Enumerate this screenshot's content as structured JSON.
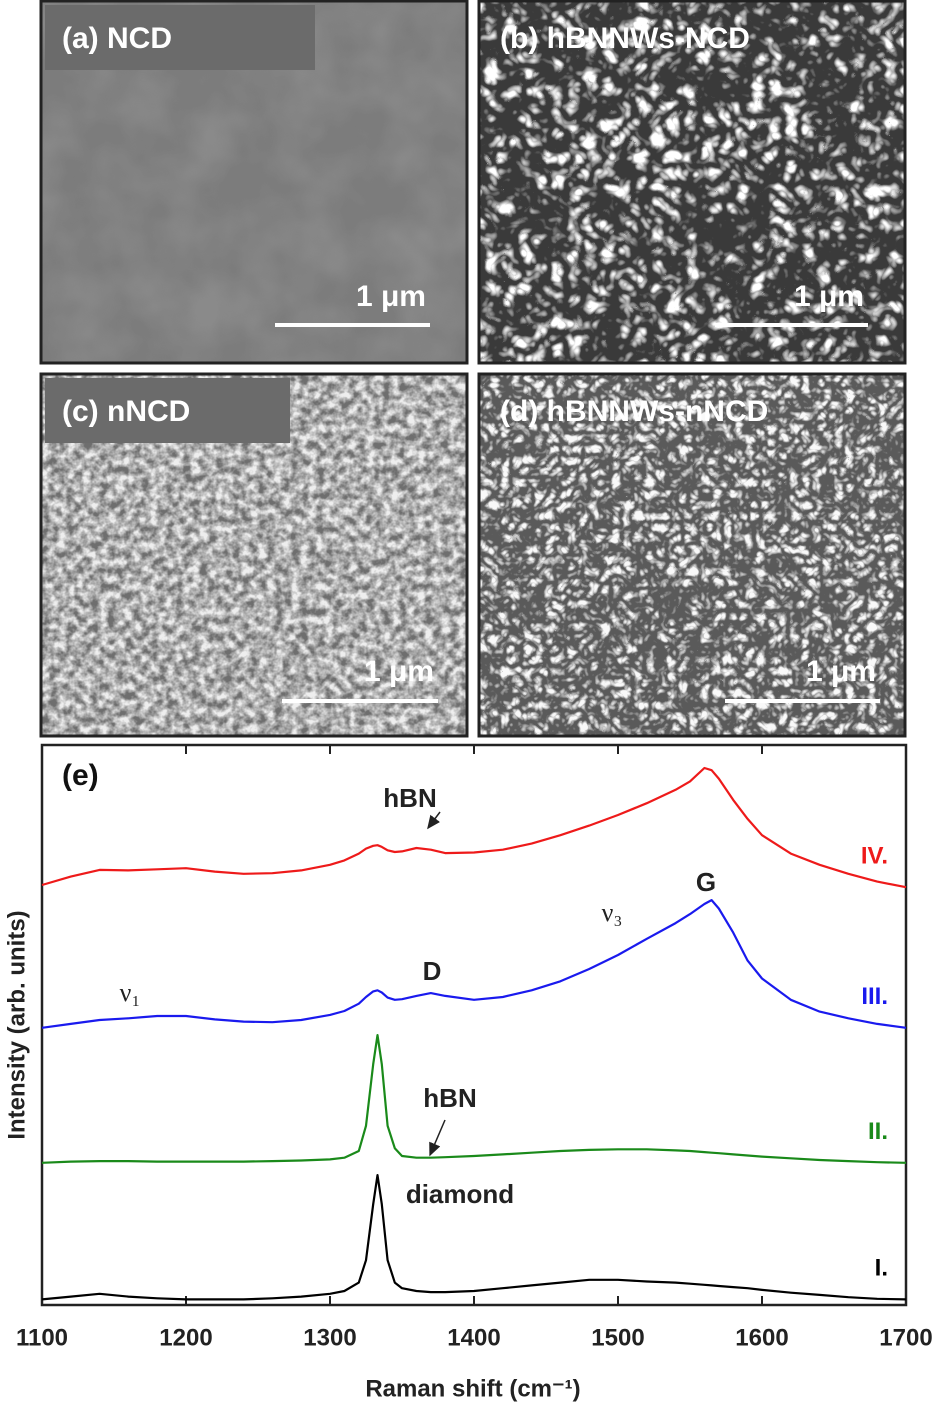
{
  "panels": [
    {
      "label": "(a) NCD",
      "scale_bar": "1 μm"
    },
    {
      "label": "(b) hBNNWs-NCD",
      "scale_bar": "1 μm"
    },
    {
      "label": "(c) nNCD",
      "scale_bar": "1 μm"
    },
    {
      "label": "(d) hBNNWs-nNCD",
      "scale_bar": "1 μm"
    }
  ],
  "chart_data": {
    "type": "line",
    "panel_label": "(e)",
    "xlabel": "Raman shift (cm⁻¹)",
    "ylabel": "Intensity (arb. units)",
    "xlim": [
      1100,
      1700
    ],
    "xticks": [
      1100,
      1200,
      1300,
      1400,
      1500,
      1600,
      1700
    ],
    "ylim": [
      0,
      100
    ],
    "x": [
      1100,
      1120,
      1140,
      1160,
      1180,
      1200,
      1220,
      1240,
      1260,
      1280,
      1300,
      1310,
      1320,
      1325,
      1330,
      1333,
      1336,
      1340,
      1345,
      1350,
      1360,
      1370,
      1380,
      1400,
      1420,
      1440,
      1460,
      1480,
      1500,
      1520,
      1540,
      1550,
      1560,
      1565,
      1570,
      1580,
      1590,
      1600,
      1620,
      1640,
      1660,
      1680,
      1700
    ],
    "series": [
      {
        "name": "I.",
        "color": "#000000",
        "values": [
          1.0,
          1.5,
          2.0,
          1.5,
          1.2,
          1.0,
          1.0,
          1.0,
          1.2,
          1.5,
          2.0,
          2.5,
          4.0,
          8,
          18,
          23.2,
          18,
          8,
          4,
          3,
          2.5,
          2.3,
          2.3,
          2.5,
          3,
          3.5,
          4,
          4.5,
          4.5,
          4.2,
          4,
          3.8,
          3.6,
          3.5,
          3.4,
          3.2,
          3,
          2.7,
          2.2,
          1.8,
          1.4,
          1.1,
          1.0
        ]
      },
      {
        "name": "II.",
        "color": "#1a8a1a",
        "values": [
          25.4,
          25.6,
          25.7,
          25.7,
          25.6,
          25.6,
          25.6,
          25.6,
          25.7,
          25.8,
          26.0,
          26.3,
          27.5,
          32,
          43,
          48.2,
          43,
          32,
          28,
          26.6,
          26.3,
          26.3,
          26.4,
          26.6,
          26.9,
          27.2,
          27.5,
          27.7,
          27.8,
          27.8,
          27.6,
          27.5,
          27.3,
          27.2,
          27.1,
          26.9,
          26.7,
          26.5,
          26.2,
          25.9,
          25.7,
          25.5,
          25.4
        ]
      },
      {
        "name": "III.",
        "color": "#1a1aee",
        "values": [
          49.5,
          50.2,
          50.9,
          51.2,
          51.6,
          51.6,
          51.0,
          50.6,
          50.5,
          50.9,
          51.8,
          52.5,
          53.8,
          55.0,
          56.0,
          56.2,
          55.8,
          54.9,
          54.5,
          54.6,
          55.2,
          55.7,
          55.2,
          54.5,
          55.0,
          56.2,
          57.8,
          60.0,
          62.5,
          65.4,
          68.2,
          69.8,
          71.6,
          72.3,
          70.8,
          66.5,
          61.5,
          58.3,
          54.5,
          52.4,
          51.2,
          50.2,
          49.5
        ]
      },
      {
        "name": "IV.",
        "color": "#ee1a1a",
        "values": [
          75.0,
          76.5,
          77.7,
          77.6,
          77.8,
          78.0,
          77.4,
          77.0,
          77.1,
          77.6,
          78.6,
          79.4,
          80.6,
          81.5,
          82.0,
          82.1,
          81.8,
          81.2,
          80.9,
          81.0,
          81.6,
          81.3,
          80.7,
          80.8,
          81.3,
          82.4,
          83.9,
          85.6,
          87.5,
          89.6,
          92.0,
          93.5,
          95.9,
          95.5,
          94.0,
          90.2,
          86.8,
          83.9,
          80.6,
          78.6,
          77.0,
          75.6,
          74.6
        ]
      }
    ],
    "annotations": [
      "hBN",
      "G",
      "ν₃",
      "D",
      "ν₁",
      "hBN",
      "diamond"
    ]
  }
}
